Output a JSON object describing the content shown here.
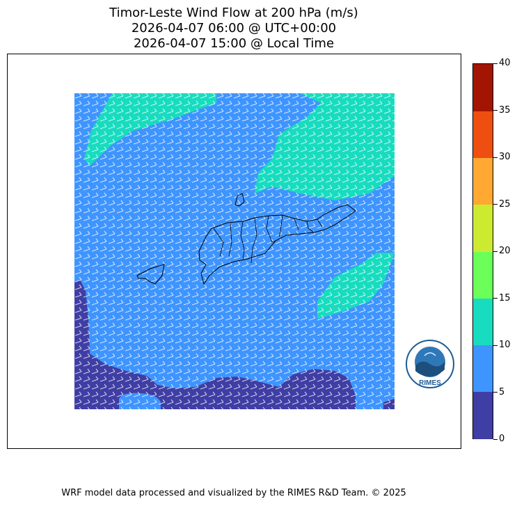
{
  "title": {
    "line1": "Timor-Leste Wind Flow at 200 hPa (m/s)",
    "line2": "2026-04-07 06:00 @ UTC+00:00",
    "line3": "2026-04-07 15:00 @ Local Time"
  },
  "map": {
    "variable": "wind speed",
    "units": "m/s",
    "glyph": "wind-barb",
    "background_speed_class": "5-10 m/s",
    "regions": [
      {
        "area": "north and north-east",
        "speed_class": "10-15 m/s"
      },
      {
        "area": "east, south of the island",
        "speed_class": "10-15 m/s"
      },
      {
        "area": "south-west and southern edge",
        "speed_class": "0-5 m/s"
      }
    ],
    "coastlines": "Timor-Leste with district boundaries, Atauro and Oecusse"
  },
  "colorbar": {
    "ticks": [
      "0",
      "5",
      "10",
      "15",
      "20",
      "25",
      "30",
      "35",
      "40"
    ],
    "colors": [
      "#3f3ea4",
      "#3f95ff",
      "#18dcbf",
      "#6cff5a",
      "#cceb30",
      "#ffa932",
      "#ee4f11",
      "#a31503"
    ]
  },
  "logo": {
    "text": "RIMES"
  },
  "footer": "WRF model data processed and visualized by the RIMES R&D Team. © 2025"
}
